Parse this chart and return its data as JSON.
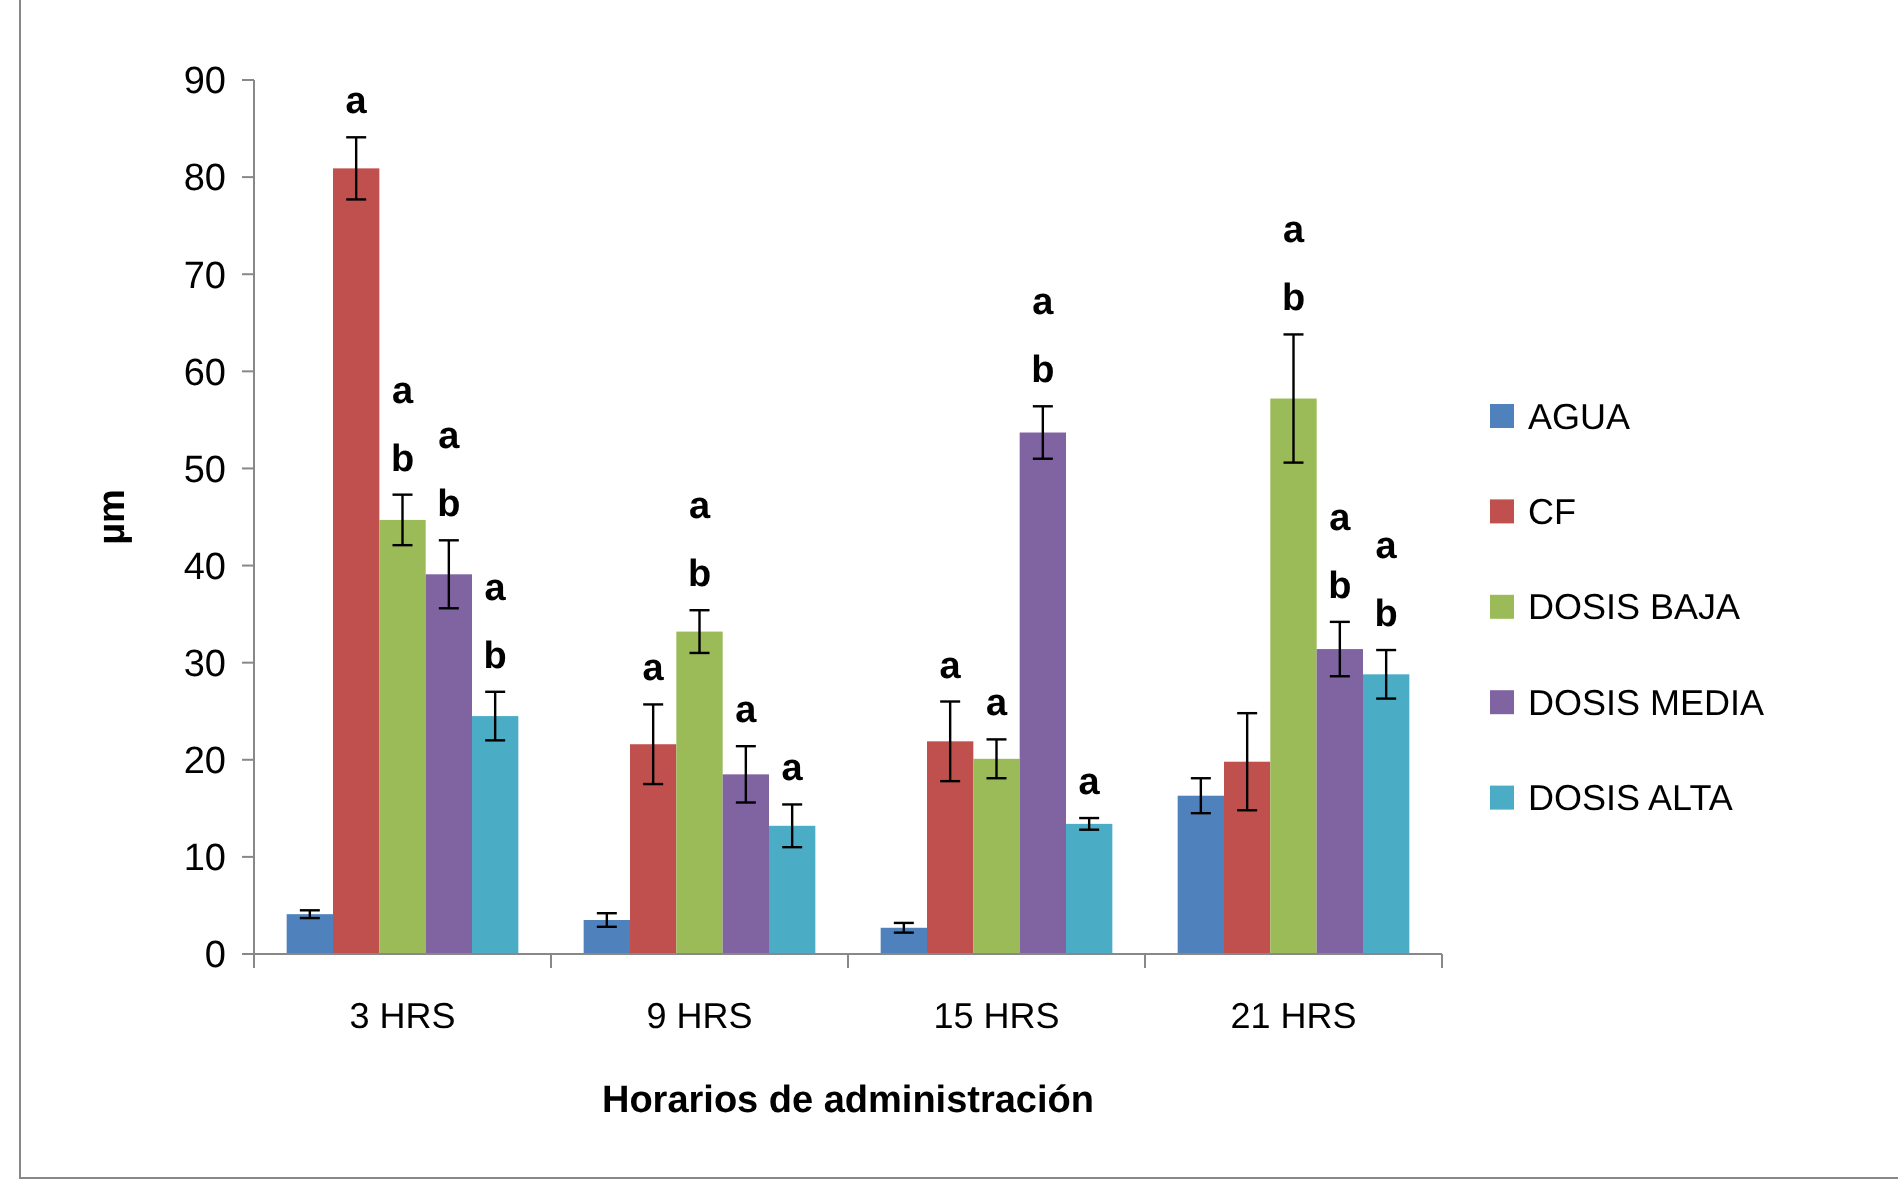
{
  "chart_data": {
    "type": "bar",
    "xlabel": "Horarios de administración",
    "ylabel": "µm",
    "categories": [
      "3 HRS",
      "9 HRS",
      "15 HRS",
      "21 HRS"
    ],
    "ylim": [
      0,
      90
    ],
    "yticks": [
      0,
      10,
      20,
      30,
      40,
      50,
      60,
      70,
      80,
      90
    ],
    "grid": false,
    "legend": "right",
    "series": [
      {
        "name": "AGUA",
        "color": "#4f81bd",
        "values": [
          4.1,
          3.5,
          2.7,
          16.3
        ],
        "errors": [
          0.4,
          0.7,
          0.5,
          1.8
        ]
      },
      {
        "name": "CF",
        "color": "#c0504d",
        "values": [
          80.9,
          21.6,
          21.9,
          19.8
        ],
        "errors": [
          3.2,
          4.1,
          4.1,
          5
        ],
        "value_labels": [
          "a",
          "a",
          "a",
          null
        ]
      },
      {
        "name": "DOSIS BAJA",
        "color": "#9bbb59",
        "values": [
          44.7,
          33.2,
          20.1,
          57.2
        ],
        "errors": [
          2.6,
          2.2,
          2,
          6.6
        ],
        "value_labels": [
          "a b",
          "a b",
          "a",
          "a b"
        ]
      },
      {
        "name": "DOSIS MEDIA",
        "color": "#8064a2",
        "values": [
          39.1,
          18.5,
          53.7,
          31.4
        ],
        "errors": [
          3.5,
          2.9,
          2.7,
          2.8
        ],
        "value_labels": [
          "a b",
          "a",
          "a b",
          "a b"
        ]
      },
      {
        "name": "DOSIS ALTA",
        "color": "#4bacc6",
        "values": [
          24.5,
          13.2,
          13.4,
          28.8
        ],
        "errors": [
          2.5,
          2.2,
          0.6,
          2.5
        ],
        "value_labels": [
          "a b",
          "a",
          "a",
          "a b"
        ]
      }
    ]
  }
}
